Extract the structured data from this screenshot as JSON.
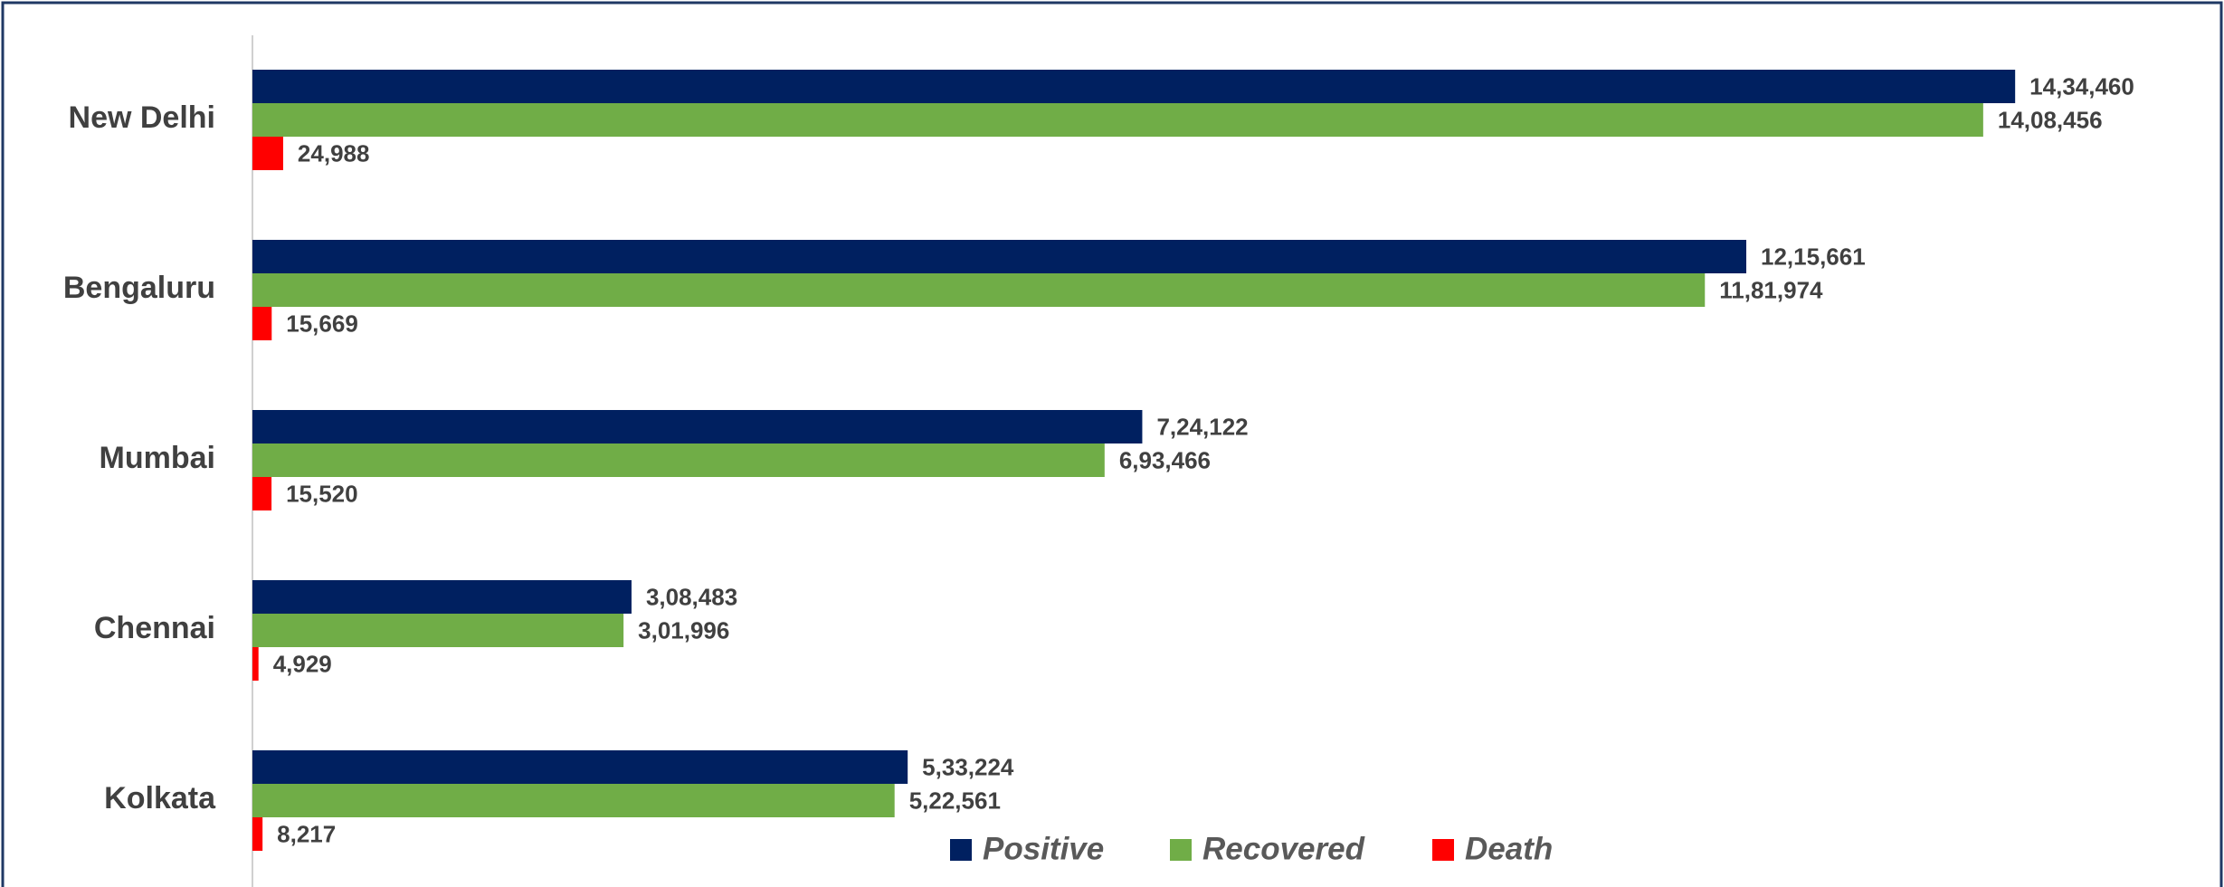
{
  "chart_data": {
    "type": "barh",
    "categories": [
      "New Delhi",
      "Bengaluru",
      "Mumbai",
      "Chennai",
      "Kolkata"
    ],
    "series": [
      {
        "name": "Positive",
        "color": "#002060",
        "values": [
          1434460,
          1215661,
          724122,
          308483,
          533224
        ],
        "value_labels": [
          "14,34,460",
          "12,15,661",
          "7,24,122",
          "3,08,483",
          "5,33,224"
        ]
      },
      {
        "name": "Recovered",
        "color": "#70ad47",
        "values": [
          1408456,
          1181974,
          693466,
          301996,
          522561
        ],
        "value_labels": [
          "14,08,456",
          "11,81,974",
          "6,93,466",
          "3,01,996",
          "5,22,561"
        ]
      },
      {
        "name": "Death",
        "color": "#ff0000",
        "values": [
          24988,
          15669,
          15520,
          4929,
          8217
        ],
        "value_labels": [
          "24,988",
          "15,669",
          "15,520",
          "4,929",
          "8,217"
        ]
      }
    ],
    "xlim": [
      0,
      1600000
    ],
    "legend": "bottom"
  }
}
